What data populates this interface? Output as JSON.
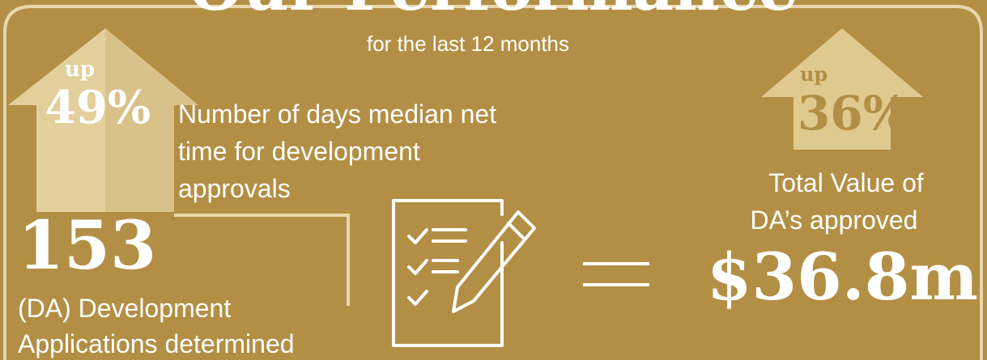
{
  "title": "Our Performance",
  "subtitle": "for the last 12 months",
  "median_time": {
    "direction": "up",
    "change": "49%",
    "label_lines": [
      "Number of days median net",
      "time for development",
      "approvals"
    ]
  },
  "applications": {
    "count": "153",
    "label_lines": [
      "(DA) Development",
      "Applications determined"
    ]
  },
  "total_value": {
    "direction": "up",
    "change": "36%",
    "label_lines": [
      "Total Value of",
      "DA’s approved"
    ],
    "amount": "$36.8m"
  }
}
